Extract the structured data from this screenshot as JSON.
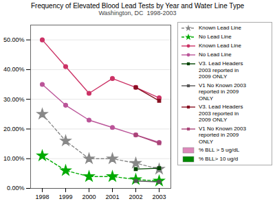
{
  "chart_data": {
    "type": "line",
    "title": "Frequency of Elevated Blood Lead Tests by Year and Water Line Type",
    "subtitle": "Washington, DC  1998-2003",
    "x": [
      1998,
      1999,
      2000,
      2001,
      2002,
      2003
    ],
    "xlim": [
      1997.5,
      2003.5
    ],
    "xticks": [
      1998,
      1999,
      2000,
      2001,
      2002,
      2003
    ],
    "ylim": [
      0.0,
      0.55
    ],
    "yticks": [
      {
        "value": 0.0,
        "label": "0.00%"
      },
      {
        "value": 0.1,
        "label": "10.00%"
      },
      {
        "value": 0.2,
        "label": "20.00%"
      },
      {
        "value": 0.3,
        "label": "30.00%"
      },
      {
        "value": 0.4,
        "label": "40.00%"
      },
      {
        "value": 0.5,
        "label": "50.00%"
      }
    ],
    "grid": true,
    "legend": "right",
    "series": [
      {
        "name": "Known Lead Line",
        "color": "#888888",
        "line_style": "dashed",
        "marker": "star",
        "values": [
          0.25,
          0.16,
          0.1,
          0.1,
          0.085,
          0.065
        ]
      },
      {
        "name": "No Lead Line",
        "color": "#00aa00",
        "line_style": "dashed",
        "marker": "star",
        "values": [
          0.11,
          0.06,
          0.04,
          0.04,
          0.03,
          0.025
        ]
      },
      {
        "name": "Known Lead Line",
        "color": "#cc3366",
        "line_style": "solid",
        "marker": "circle",
        "values": [
          0.5,
          0.41,
          0.32,
          0.37,
          0.34,
          0.305
        ]
      },
      {
        "name": "No Lead Line",
        "color": "#bb5599",
        "line_style": "solid",
        "marker": "circle",
        "values": [
          0.35,
          0.28,
          0.23,
          0.205,
          0.18,
          0.155
        ]
      },
      {
        "name": "V3. Lead Headers\n2003 reported in\n2009 ONLY",
        "color": "#004400",
        "line_style": "solid",
        "marker": "square",
        "values": [
          null,
          null,
          null,
          null,
          0.065,
          0.068
        ]
      },
      {
        "name": "V1 No Known 2003\nreported in 2009\nONLY",
        "color": "#555555",
        "line_style": "solid",
        "marker": "square",
        "values": [
          null,
          null,
          null,
          null,
          0.025,
          0.022
        ]
      },
      {
        "name": "V3. Lead Headers\n2003 reported in\n2009 ONLY",
        "color": "#881122",
        "line_style": "solid",
        "marker": "square",
        "values": [
          null,
          null,
          null,
          null,
          0.34,
          0.295
        ]
      },
      {
        "name": "V1 No Known 2003\nreported in 2009\nONLY",
        "color": "#aa4477",
        "line_style": "solid",
        "marker": "square",
        "values": [
          null,
          null,
          null,
          null,
          0.18,
          0.152
        ]
      },
      {
        "name": "% BLL > 5 ug/dL",
        "type": "patch",
        "color": "#dd88bb",
        "values": [
          null,
          null,
          null,
          null,
          null,
          null
        ]
      },
      {
        "name": "% BLL> 10 ug/d",
        "type": "patch",
        "color": "#008800",
        "values": [
          null,
          null,
          null,
          null,
          null,
          null
        ]
      }
    ]
  }
}
